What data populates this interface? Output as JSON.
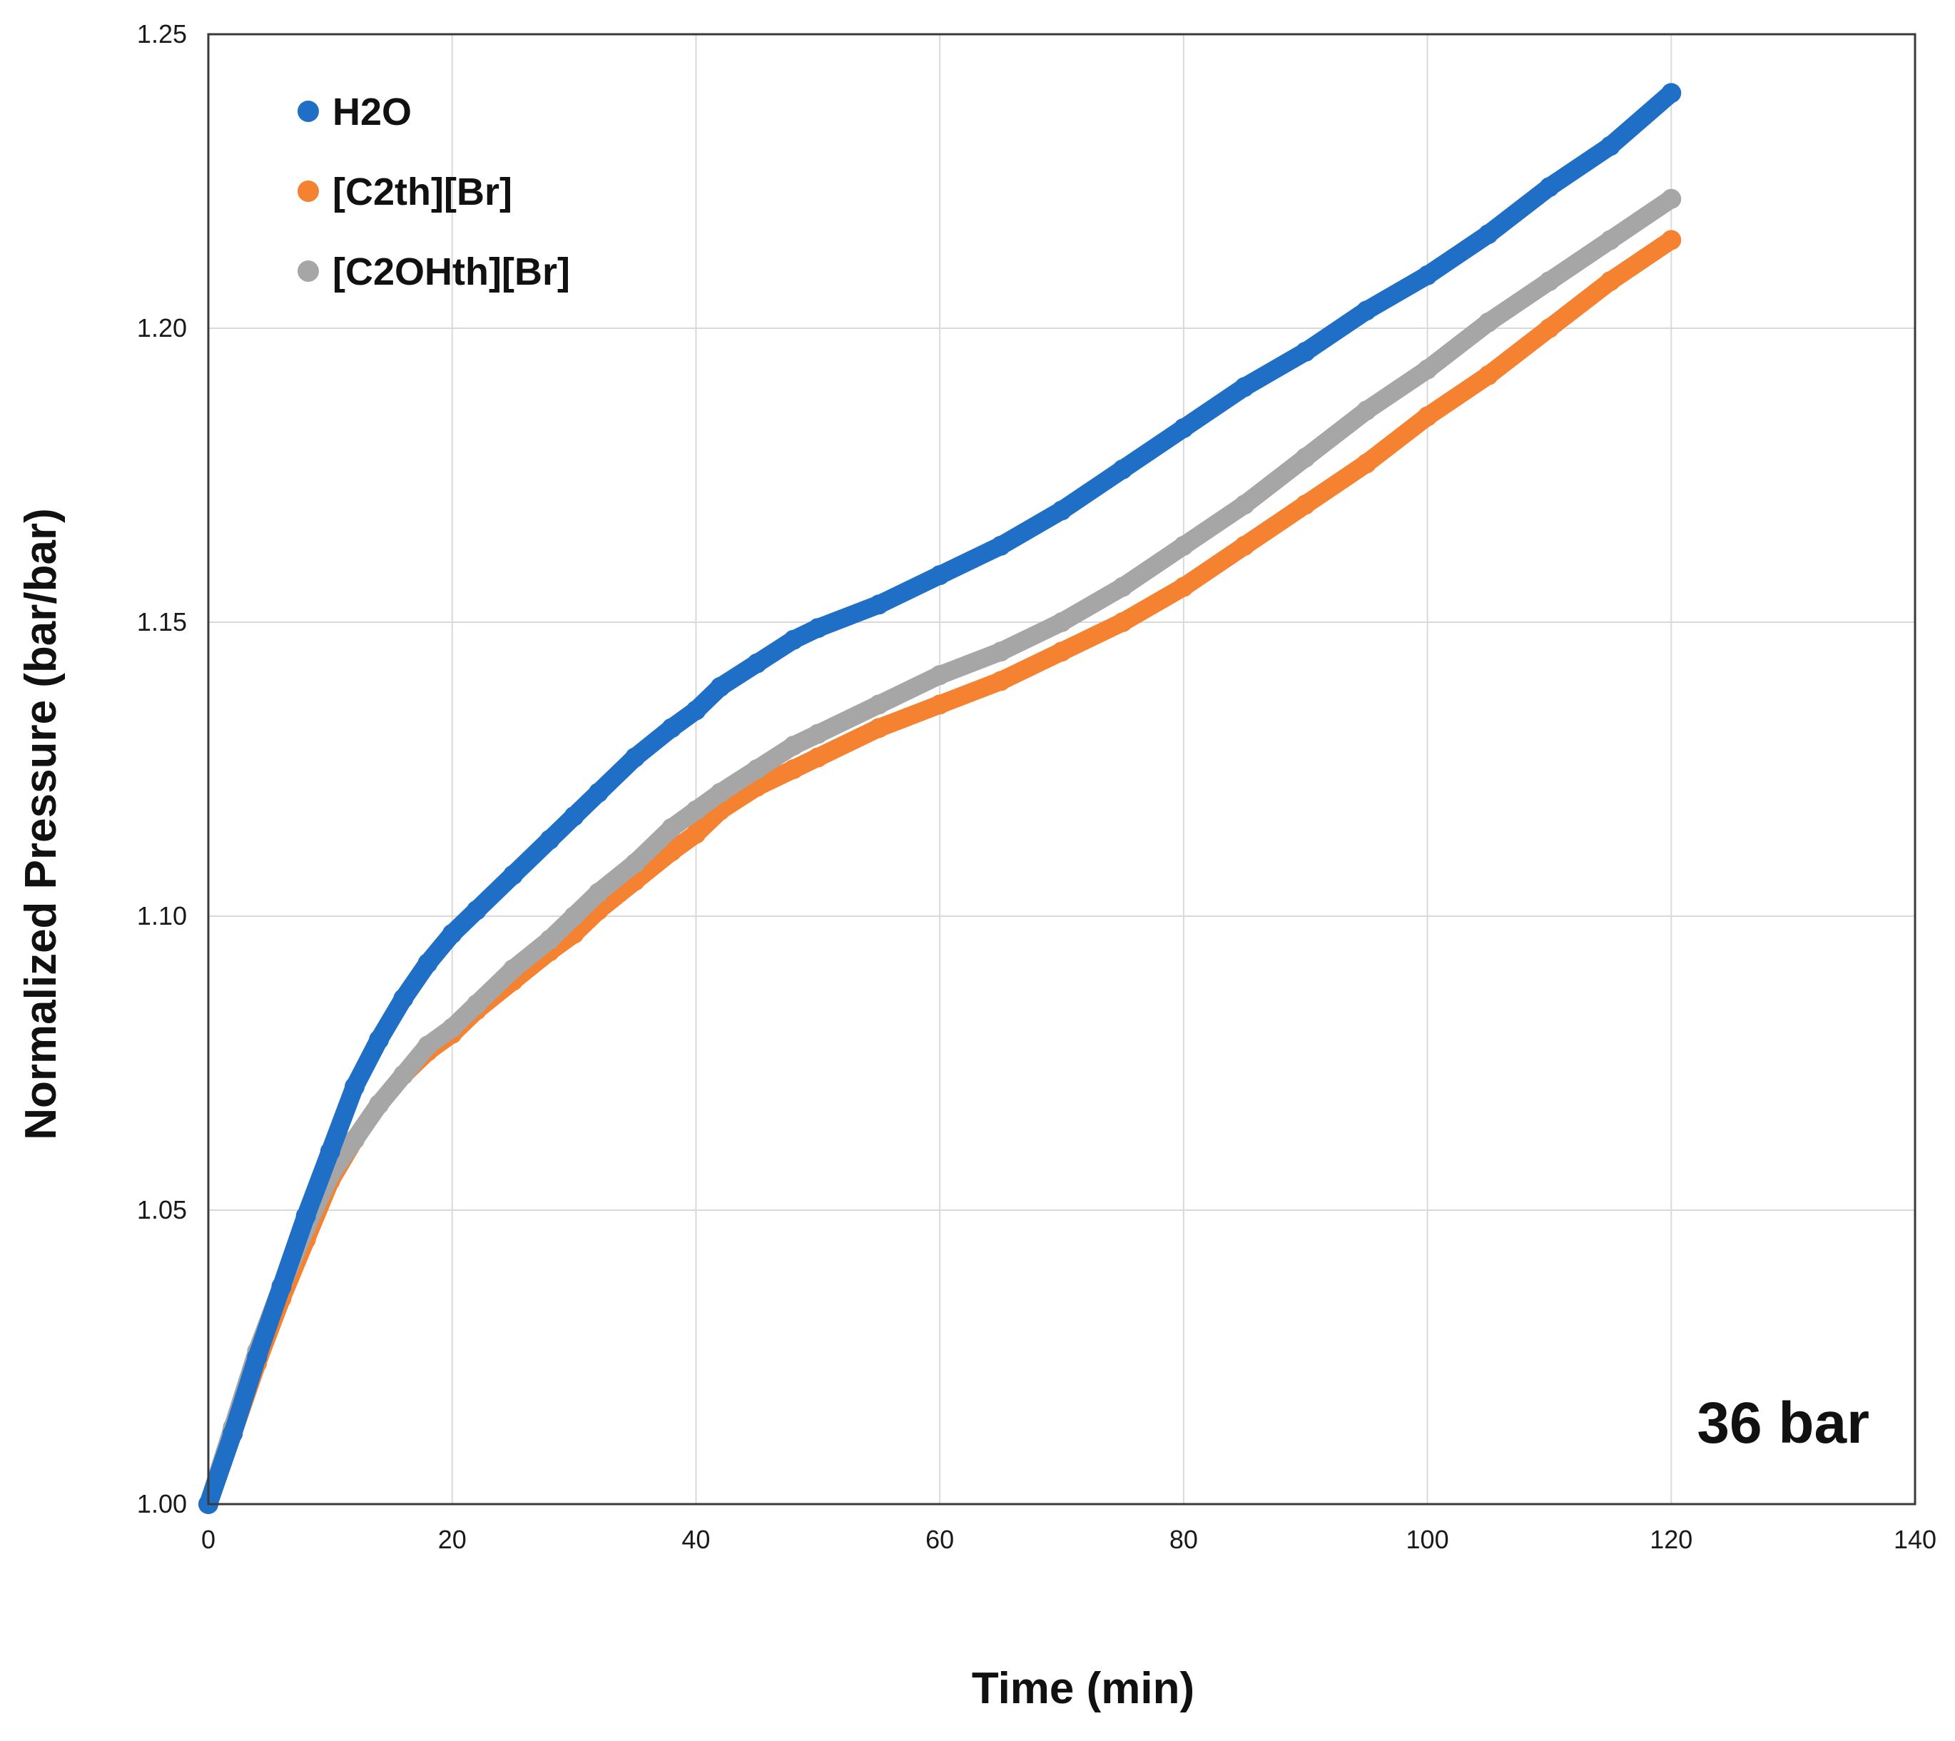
{
  "chart_data": {
    "type": "scatter",
    "title": "",
    "xlabel": "Time (min)",
    "ylabel": "Normalized Pressure (bar/bar)",
    "xlim": [
      0,
      140
    ],
    "ylim": [
      1.0,
      1.25
    ],
    "x_ticks": [
      "0",
      "20",
      "40",
      "60",
      "80",
      "100",
      "120",
      "140"
    ],
    "y_ticks": [
      "1.00",
      "1.05",
      "1.10",
      "1.15",
      "1.20",
      "1.25"
    ],
    "grid": true,
    "legend_position": "top-left",
    "annotation": "36 bar",
    "series": [
      {
        "name": "H2O",
        "color": "#1f6fc6",
        "x": [
          0,
          2,
          4,
          6,
          8,
          10,
          12,
          14,
          16,
          18,
          20,
          22,
          25,
          28,
          30,
          32,
          35,
          38,
          40,
          42,
          45,
          48,
          50,
          55,
          60,
          65,
          70,
          75,
          80,
          85,
          90,
          95,
          100,
          105,
          110,
          115,
          120
        ],
        "y": [
          1.0,
          1.012,
          1.025,
          1.037,
          1.049,
          1.06,
          1.071,
          1.079,
          1.086,
          1.092,
          1.097,
          1.101,
          1.107,
          1.113,
          1.117,
          1.121,
          1.127,
          1.132,
          1.135,
          1.139,
          1.143,
          1.147,
          1.149,
          1.153,
          1.158,
          1.163,
          1.169,
          1.176,
          1.183,
          1.19,
          1.196,
          1.203,
          1.209,
          1.216,
          1.224,
          1.231,
          1.24
        ]
      },
      {
        "name": "[C2th][Br]",
        "color": "#f58231",
        "x": [
          0,
          2,
          4,
          6,
          8,
          10,
          12,
          14,
          16,
          18,
          20,
          22,
          25,
          28,
          30,
          32,
          35,
          38,
          40,
          42,
          45,
          48,
          50,
          55,
          60,
          65,
          70,
          75,
          80,
          85,
          90,
          95,
          100,
          105,
          110,
          115,
          120
        ],
        "y": [
          1.0,
          1.012,
          1.024,
          1.035,
          1.045,
          1.055,
          1.062,
          1.068,
          1.073,
          1.077,
          1.08,
          1.084,
          1.089,
          1.094,
          1.097,
          1.101,
          1.106,
          1.111,
          1.114,
          1.118,
          1.122,
          1.125,
          1.127,
          1.132,
          1.136,
          1.14,
          1.145,
          1.15,
          1.156,
          1.163,
          1.17,
          1.177,
          1.185,
          1.192,
          1.2,
          1.208,
          1.215
        ]
      },
      {
        "name": "[C2OHth][Br]",
        "color": "#a6a6a6",
        "x": [
          0,
          2,
          4,
          6,
          8,
          10,
          12,
          14,
          16,
          18,
          20,
          22,
          25,
          28,
          30,
          32,
          35,
          38,
          40,
          42,
          45,
          48,
          50,
          55,
          60,
          65,
          70,
          75,
          80,
          85,
          90,
          95,
          100,
          105,
          110,
          115,
          120
        ],
        "y": [
          1.0,
          1.013,
          1.026,
          1.037,
          1.047,
          1.056,
          1.062,
          1.068,
          1.073,
          1.078,
          1.081,
          1.085,
          1.091,
          1.096,
          1.1,
          1.104,
          1.109,
          1.115,
          1.118,
          1.121,
          1.125,
          1.129,
          1.131,
          1.136,
          1.141,
          1.145,
          1.15,
          1.156,
          1.163,
          1.17,
          1.178,
          1.186,
          1.193,
          1.201,
          1.208,
          1.215,
          1.222
        ]
      }
    ]
  }
}
